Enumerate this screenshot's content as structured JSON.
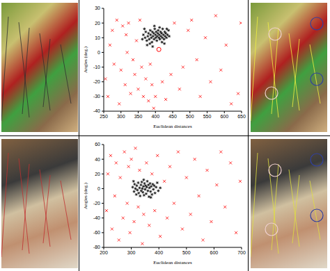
{
  "chart_data": [
    {
      "type": "scatter",
      "x_label": "Euclidean distances",
      "y_label": "Angles (deg.)",
      "xlim": [
        250,
        650
      ],
      "xticks": [
        250,
        300,
        350,
        400,
        450,
        500,
        550,
        600,
        650
      ],
      "ylim": [
        -40,
        30
      ],
      "yticks": [
        -40,
        -30,
        -20,
        -10,
        0,
        10,
        20,
        30
      ],
      "series": [
        {
          "color": "#000000",
          "marker": "asterisk",
          "x": [
            365,
            370,
            372,
            375,
            378,
            380,
            382,
            385,
            386,
            388,
            390,
            391,
            393,
            395,
            396,
            398,
            400,
            401,
            402,
            404,
            405,
            407,
            408,
            410,
            411,
            413,
            415,
            416,
            418,
            420,
            421,
            423,
            425,
            427,
            428,
            430,
            432,
            435,
            438,
            440,
            362,
            368,
            376,
            384,
            397,
            412,
            426,
            433,
            392,
            419
          ],
          "y": [
            12,
            10,
            14,
            8,
            11,
            13,
            9,
            15,
            12,
            10,
            7,
            14,
            11,
            13,
            9,
            16,
            12,
            10,
            14,
            8,
            11,
            13,
            15,
            10,
            12,
            9,
            14,
            11,
            13,
            10,
            16,
            12,
            9,
            14,
            11,
            13,
            10,
            12,
            15,
            11,
            9,
            16,
            5,
            6,
            18,
            17,
            6,
            16,
            4,
            7
          ]
        },
        {
          "color": "#ff0000",
          "marker": "x",
          "x": [
            255,
            262,
            268,
            275,
            280,
            288,
            295,
            300,
            305,
            312,
            318,
            322,
            328,
            335,
            340,
            345,
            350,
            355,
            360,
            365,
            372,
            380,
            385,
            390,
            395,
            420,
            430,
            445,
            455,
            470,
            480,
            495,
            505,
            520,
            530,
            545,
            560,
            575,
            590,
            605,
            620,
            640,
            648,
            400,
            315
          ],
          "y": [
            -18,
            -30,
            5,
            15,
            -8,
            22,
            -35,
            -12,
            18,
            -22,
            0,
            20,
            -28,
            -5,
            -15,
            8,
            -25,
            22,
            -10,
            -30,
            -18,
            -33,
            -8,
            -22,
            -38,
            -20,
            -32,
            -15,
            20,
            -25,
            -10,
            15,
            22,
            -5,
            -30,
            10,
            -20,
            25,
            -12,
            5,
            -35,
            -28,
            20,
            -30,
            12
          ]
        },
        {
          "color": "#ff0000",
          "marker": "circle",
          "x": [
            410
          ],
          "y": [
            2
          ]
        }
      ]
    },
    {
      "type": "scatter",
      "x_label": "Euclidean distances",
      "y_label": "Angles (deg.)",
      "xlim": [
        200,
        700
      ],
      "xticks": [
        200,
        300,
        400,
        500,
        600,
        700
      ],
      "ylim": [
        -80,
        60
      ],
      "yticks": [
        -80,
        -60,
        -40,
        -20,
        0,
        20,
        40,
        60
      ],
      "series": [
        {
          "color": "#000000",
          "marker": "asterisk",
          "x": [
            305,
            310,
            312,
            315,
            318,
            320,
            322,
            325,
            327,
            330,
            332,
            335,
            336,
            338,
            340,
            342,
            344,
            346,
            348,
            350,
            352,
            354,
            356,
            358,
            360,
            362,
            364,
            366,
            368,
            370,
            372,
            375,
            378,
            380,
            383,
            386,
            390,
            394,
            398,
            405,
            308,
            345,
            371
          ],
          "y": [
            2,
            -4,
            6,
            0,
            -8,
            4,
            -2,
            8,
            -6,
            1,
            -10,
            5,
            -3,
            9,
            0,
            -5,
            3,
            -9,
            7,
            -1,
            4,
            -7,
            2,
            10,
            -3,
            5,
            -11,
            1,
            7,
            -4,
            3,
            -8,
            6,
            -1,
            4,
            -6,
            2,
            8,
            -3,
            1,
            10,
            12,
            -12
          ]
        },
        {
          "color": "#ff0000",
          "marker": "x",
          "x": [
            210,
            215,
            225,
            230,
            240,
            245,
            255,
            260,
            270,
            275,
            285,
            290,
            295,
            300,
            310,
            315,
            325,
            330,
            340,
            345,
            355,
            365,
            375,
            385,
            395,
            405,
            420,
            430,
            440,
            455,
            470,
            485,
            500,
            515,
            530,
            545,
            560,
            575,
            590,
            610,
            625,
            640,
            660,
            680,
            695
          ],
          "y": [
            -30,
            20,
            45,
            -55,
            -10,
            35,
            -70,
            15,
            -40,
            50,
            -20,
            30,
            -60,
            40,
            -45,
            55,
            -25,
            25,
            -75,
            -35,
            35,
            -50,
            20,
            -30,
            45,
            -65,
            10,
            -40,
            30,
            -20,
            50,
            -55,
            15,
            -35,
            40,
            -10,
            -70,
            25,
            -45,
            5,
            50,
            -25,
            35,
            -60,
            10
          ]
        }
      ]
    }
  ]
}
